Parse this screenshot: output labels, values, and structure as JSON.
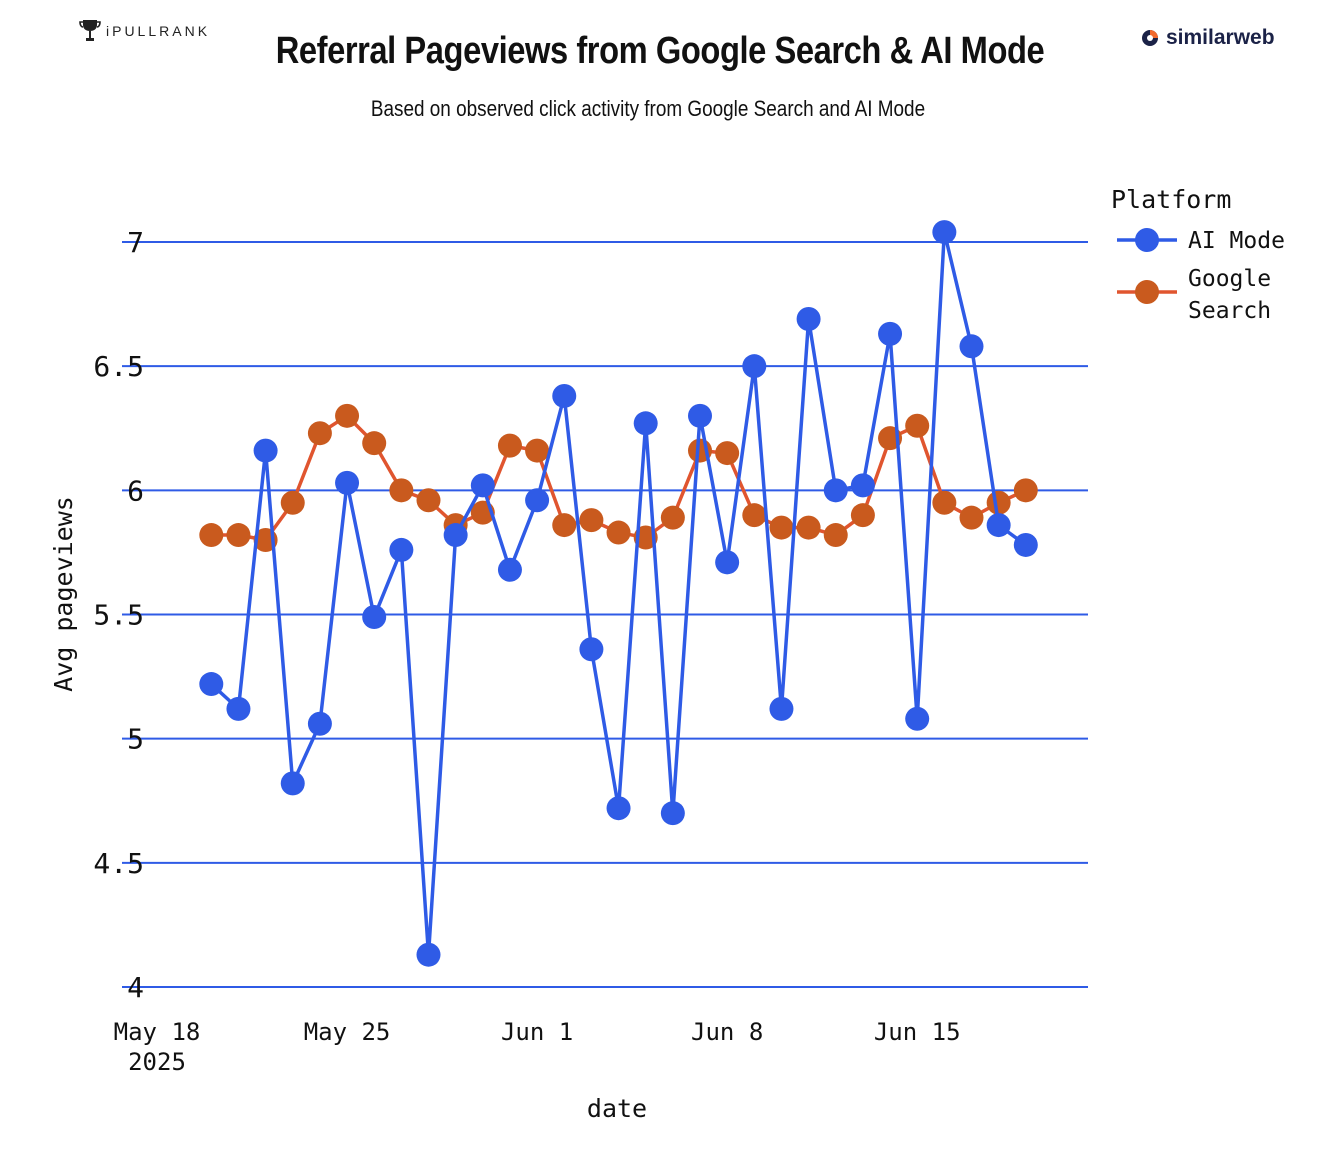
{
  "brand": {
    "left_logo": "iPULLRANK",
    "right_logo": "similarweb"
  },
  "chart_data": {
    "type": "line",
    "title": "Referral Pageviews from Google Search & AI Mode",
    "subtitle": "Based on observed click activity from Google Search and AI Mode",
    "xlabel": "date",
    "ylabel": "Avg pageviews",
    "ylim": [
      4,
      7
    ],
    "yticks": [
      "4",
      "4.5",
      "5",
      "5.5",
      "6",
      "6.5",
      "7"
    ],
    "xticks": [
      {
        "date": "2025-05-18",
        "label": "May 18",
        "sublabel": "2025"
      },
      {
        "date": "2025-05-25",
        "label": "May 25"
      },
      {
        "date": "2025-06-01",
        "label": "Jun 1"
      },
      {
        "date": "2025-06-08",
        "label": "Jun 8"
      },
      {
        "date": "2025-06-15",
        "label": "Jun 15"
      }
    ],
    "grid": true,
    "legend": {
      "title": "Platform",
      "position": "top-right"
    },
    "x": [
      "2025-05-20",
      "2025-05-21",
      "2025-05-22",
      "2025-05-23",
      "2025-05-24",
      "2025-05-25",
      "2025-05-26",
      "2025-05-27",
      "2025-05-28",
      "2025-05-29",
      "2025-05-30",
      "2025-05-31",
      "2025-06-01",
      "2025-06-02",
      "2025-06-03",
      "2025-06-04",
      "2025-06-05",
      "2025-06-06",
      "2025-06-07",
      "2025-06-08",
      "2025-06-09",
      "2025-06-10",
      "2025-06-11",
      "2025-06-12",
      "2025-06-13",
      "2025-06-14",
      "2025-06-15",
      "2025-06-16",
      "2025-06-17",
      "2025-06-18",
      "2025-06-19"
    ],
    "series": [
      {
        "name": "AI Mode",
        "color": "#2f5be6",
        "values": [
          5.22,
          5.12,
          6.16,
          4.82,
          5.06,
          6.03,
          5.49,
          5.76,
          4.13,
          5.82,
          6.02,
          5.68,
          5.96,
          6.38,
          5.36,
          4.72,
          6.27,
          4.7,
          6.3,
          5.71,
          6.5,
          5.12,
          6.69,
          6.0,
          6.02,
          6.63,
          5.08,
          7.04,
          6.58,
          5.86,
          5.78
        ]
      },
      {
        "name": "Google Search",
        "color": "#c95a1e",
        "line_color": "#e0552f",
        "values": [
          5.82,
          5.82,
          5.8,
          5.95,
          6.23,
          6.3,
          6.19,
          6.0,
          5.96,
          5.86,
          5.91,
          6.18,
          6.16,
          5.86,
          5.88,
          5.83,
          5.81,
          5.89,
          6.16,
          6.15,
          5.9,
          5.85,
          5.85,
          5.82,
          5.9,
          6.21,
          6.26,
          5.95,
          5.89,
          5.95,
          6.0
        ]
      }
    ]
  }
}
